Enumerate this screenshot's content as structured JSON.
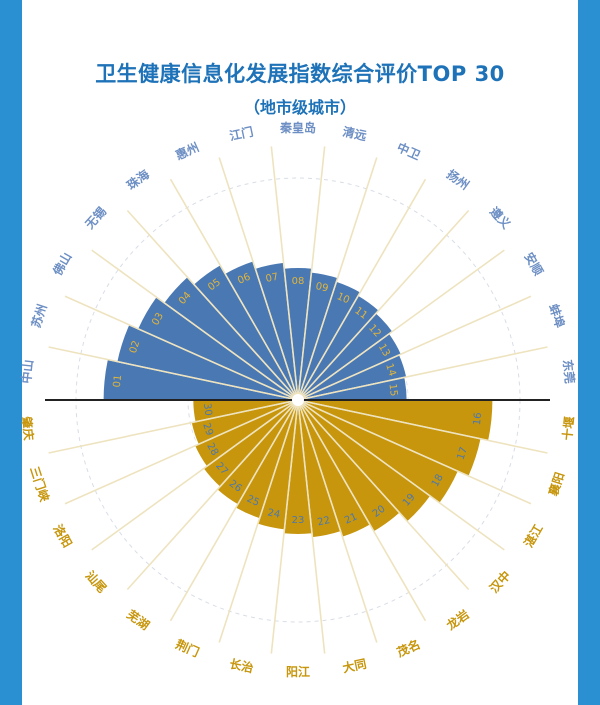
{
  "chart_data": {
    "type": "radial-bar",
    "title": "卫生健康信息化发展指数综合评价TOP 30",
    "subtitle": "（地市级城市）",
    "colors": {
      "top": "#4a78b3",
      "bottom": "#c7960c",
      "spokes": "#eee3bf"
    },
    "top_half": [
      {
        "rank": "01",
        "city": "中山",
        "value": 100
      },
      {
        "rank": "02",
        "city": "苏州",
        "value": 95
      },
      {
        "rank": "03",
        "city": "佛山",
        "value": 90
      },
      {
        "rank": "04",
        "city": "无锡",
        "value": 85
      },
      {
        "rank": "05",
        "city": "珠海",
        "value": 80
      },
      {
        "rank": "06",
        "city": "惠州",
        "value": 75
      },
      {
        "rank": "07",
        "city": "江门",
        "value": 71
      },
      {
        "rank": "08",
        "city": "秦皇岛",
        "value": 68
      },
      {
        "rank": "09",
        "city": "清远",
        "value": 66
      },
      {
        "rank": "10",
        "city": "中卫",
        "value": 64
      },
      {
        "rank": "11",
        "city": "扬州",
        "value": 62
      },
      {
        "rank": "12",
        "city": "遵义",
        "value": 60
      },
      {
        "rank": "13",
        "city": "安顺",
        "value": 58
      },
      {
        "rank": "14",
        "city": "蚌埠",
        "value": 57
      },
      {
        "rank": "15",
        "city": "东莞",
        "value": 56
      }
    ],
    "bottom_half": [
      {
        "rank": "16",
        "city": "十堰",
        "value": 100
      },
      {
        "rank": "17",
        "city": "襄阳",
        "value": 96
      },
      {
        "rank": "18",
        "city": "湛江",
        "value": 90
      },
      {
        "rank": "19",
        "city": "汉中",
        "value": 84
      },
      {
        "rank": "20",
        "city": "龙岩",
        "value": 78
      },
      {
        "rank": "21",
        "city": "茂名",
        "value": 74
      },
      {
        "rank": "22",
        "city": "大同",
        "value": 71
      },
      {
        "rank": "23",
        "city": "阳江",
        "value": 69
      },
      {
        "rank": "24",
        "city": "长治",
        "value": 67
      },
      {
        "rank": "25",
        "city": "荆门",
        "value": 64
      },
      {
        "rank": "26",
        "city": "芜湖",
        "value": 62
      },
      {
        "rank": "27",
        "city": "汕尾",
        "value": 60
      },
      {
        "rank": "28",
        "city": "洛阳",
        "value": 58
      },
      {
        "rank": "29",
        "city": "三门峡",
        "value": 56
      },
      {
        "rank": "30",
        "city": "肇庆",
        "value": 54
      }
    ]
  }
}
